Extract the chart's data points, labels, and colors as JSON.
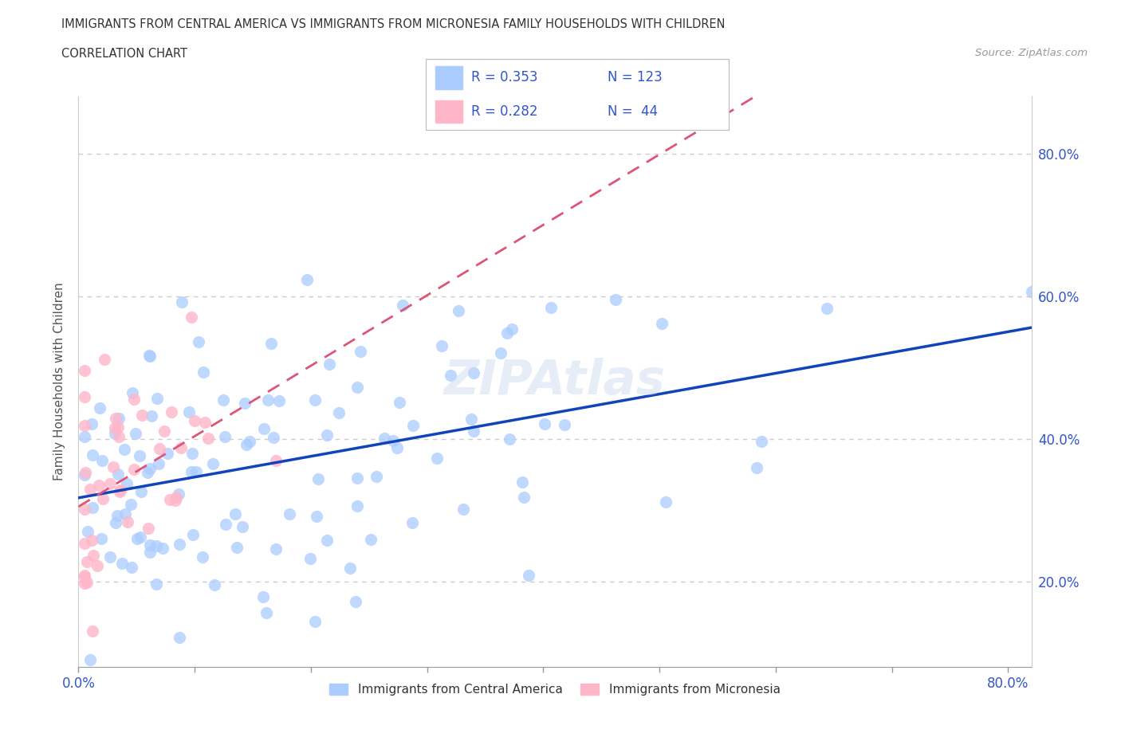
{
  "title": "IMMIGRANTS FROM CENTRAL AMERICA VS IMMIGRANTS FROM MICRONESIA FAMILY HOUSEHOLDS WITH CHILDREN",
  "subtitle": "CORRELATION CHART",
  "source": "Source: ZipAtlas.com",
  "ylabel": "Family Households with Children",
  "r_blue": 0.353,
  "n_blue": 123,
  "r_pink": 0.282,
  "n_pink": 44,
  "legend_label_blue": "Immigrants from Central America",
  "legend_label_pink": "Immigrants from Micronesia",
  "blue_color": "#AACCFF",
  "pink_color": "#FFB6C8",
  "trend_blue_color": "#1144BB",
  "trend_pink_color": "#DD5577",
  "stat_color": "#3355CC",
  "watermark": "ZIPAtlas",
  "xlim": [
    0.0,
    0.82
  ],
  "ylim": [
    0.08,
    0.88
  ],
  "x_ticks": [
    0.0,
    0.8
  ],
  "x_tick_labels": [
    "0.0%",
    "80.0%"
  ],
  "y_ticks": [
    0.2,
    0.4,
    0.6,
    0.8
  ],
  "y_tick_labels": [
    "20.0%",
    "40.0%",
    "60.0%",
    "80.0%"
  ]
}
